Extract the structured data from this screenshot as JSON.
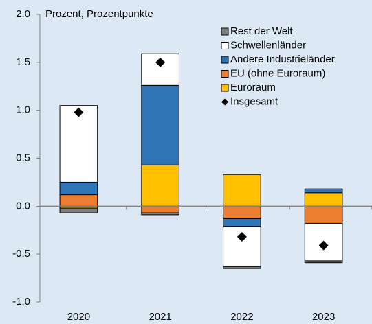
{
  "chart_data": {
    "type": "bar",
    "stacked": true,
    "y_label": "Prozent, Prozentpunkte",
    "categories": [
      "2020",
      "2021",
      "2022",
      "2023"
    ],
    "series": [
      {
        "name": "Rest der Welt",
        "color": "#808080",
        "values": [
          -0.05,
          -0.02,
          -0.02,
          -0.02
        ]
      },
      {
        "name": "Schwellenländer",
        "color": "#ffffff",
        "values": [
          0.8,
          0.33,
          -0.42,
          -0.39
        ]
      },
      {
        "name": "Andere Industrieländer",
        "color": "#2e75b6",
        "values": [
          0.13,
          0.83,
          -0.08,
          0.04
        ]
      },
      {
        "name": "EU (ohne Euroraum)",
        "color": "#ed7d31",
        "values": [
          0.12,
          -0.07,
          -0.13,
          -0.18
        ]
      },
      {
        "name": "Euroraum",
        "color": "#ffc000",
        "values": [
          -0.02,
          0.43,
          0.33,
          0.14
        ]
      }
    ],
    "totals": {
      "name": "Insgesamt",
      "color": "#000000",
      "values": [
        0.98,
        1.5,
        -0.32,
        -0.41
      ]
    },
    "stack_order": [
      4,
      3,
      2,
      1,
      0
    ],
    "ylim": [
      -1.0,
      2.0
    ],
    "yticks": [
      {
        "value": 2.0,
        "label": "2.0"
      },
      1.5,
      {
        "value": 1.0,
        "label": "1.0"
      },
      0.5,
      {
        "value": 0.0,
        "label": "0.0"
      },
      -0.5,
      {
        "value": -1.0,
        "label": "-1.0"
      }
    ],
    "legend": "top-right"
  }
}
